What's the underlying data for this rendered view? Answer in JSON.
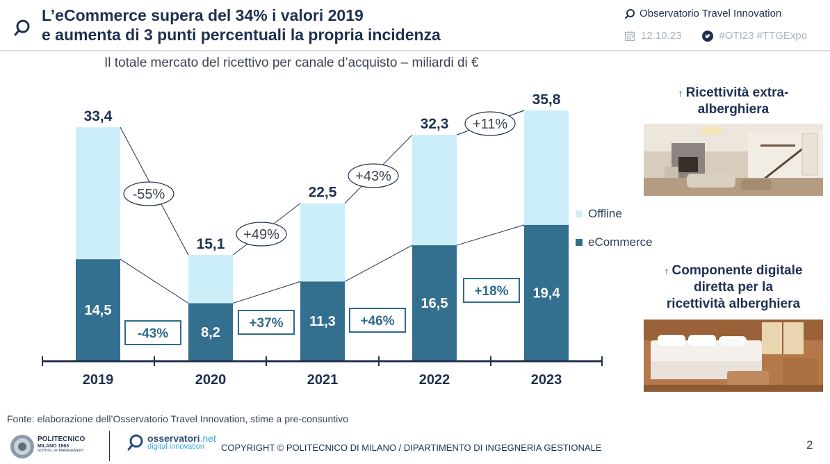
{
  "header": {
    "title_line1": "L’eCommerce supera del 34% i valori 2019",
    "title_line2": "e aumenta di 3 punti percentuali la propria incidenza",
    "brand": "Observatorio Travel Innovation",
    "date": "12.10.23",
    "hashtags": "#OTI23  #TTGExpo"
  },
  "subtitle": "Il totale mercato del ricettivo per canale d’acquisto – miliardi di €",
  "colors": {
    "offline": "#cbeef9",
    "ecommerce": "#336f8f",
    "title": "#1f3050",
    "line": "#1f3050"
  },
  "chart_data": {
    "type": "bar",
    "stacked": true,
    "title": "Il totale mercato del ricettivo per canale d’acquisto – miliardi di €",
    "categories": [
      "2019",
      "2020",
      "2021",
      "2022",
      "2023"
    ],
    "series": [
      {
        "name": "eCommerce",
        "values": [
          14.5,
          8.2,
          11.3,
          16.5,
          19.4
        ],
        "labels": [
          "14,5",
          "8,2",
          "11,3",
          "16,5",
          "19,4"
        ]
      },
      {
        "name": "Offline",
        "values": [
          18.9,
          6.9,
          11.2,
          15.8,
          16.4
        ]
      }
    ],
    "totals": [
      33.4,
      15.1,
      22.5,
      32.3,
      35.8
    ],
    "total_labels": [
      "33,4",
      "15,1",
      "22,5",
      "32,3",
      "35,8"
    ],
    "total_changes": [
      "-55%",
      "+49%",
      "+43%",
      "+11%"
    ],
    "ecommerce_changes": [
      "-43%",
      "+37%",
      "+46%",
      "+18%"
    ],
    "legend": [
      "Offline",
      "eCommerce"
    ],
    "ylim": [
      0,
      40
    ],
    "unit": "miliardi di €"
  },
  "sidebar": {
    "item1": "Ricettività extra-alberghiera",
    "item1_line1": "Ricettività extra-",
    "item1_line2": "alberghiera",
    "item2": "Componente digitale diretta per la ricettività alberghiera",
    "item2_line1": "Componente digitale",
    "item2_line2": "diretta per la",
    "item2_line3": "ricettività alberghiera"
  },
  "footer": {
    "source": "Fonte: elaborazione dell’Osservatorio Travel Innovation, stime a pre-consuntivo",
    "poli_name": "POLITECNICO",
    "poli_sub": "MILANO 1863",
    "poli_school": "SCHOOL OF MANAGEMENT",
    "oss_name": "osservatori",
    "oss_net": ".net",
    "oss_sub": "digital innovation",
    "copyright": "COPYRIGHT © POLITECNICO DI MILANO / DIPARTIMENTO DI INGEGNERIA GESTIONALE",
    "page": "2"
  }
}
